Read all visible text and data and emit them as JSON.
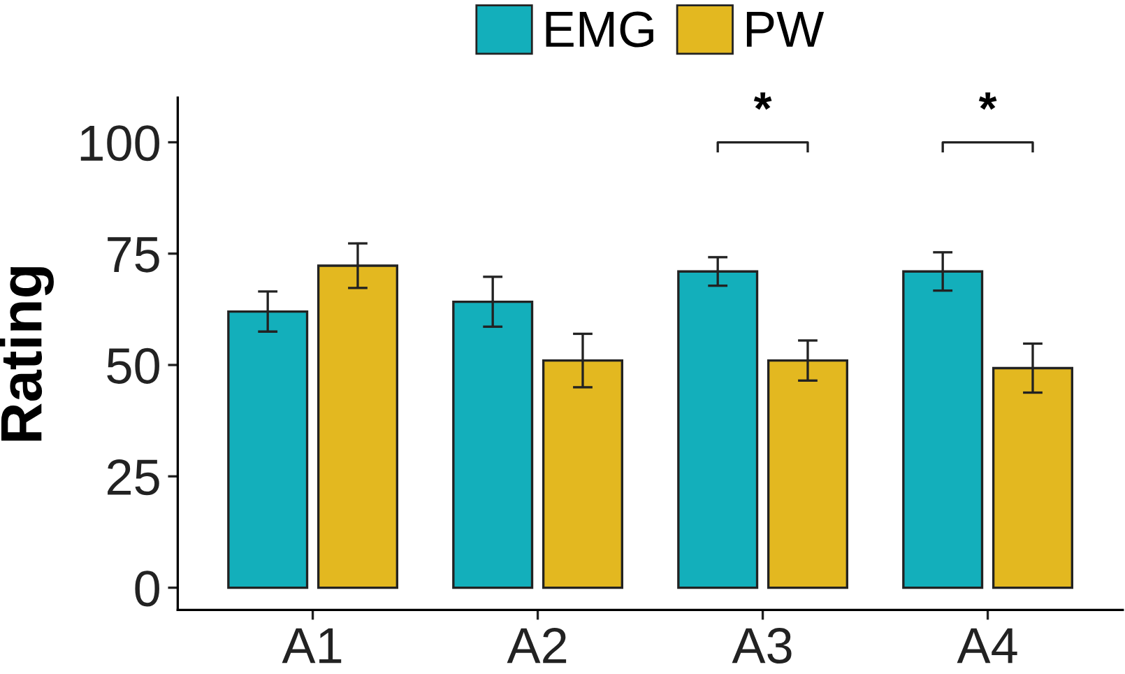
{
  "chart_data": {
    "type": "bar",
    "ylabel": "Rating",
    "categories": [
      "A1",
      "A2",
      "A3",
      "A4"
    ],
    "series": [
      {
        "name": "EMG",
        "color": "#13afbb",
        "values": [
          62,
          64.2,
          71,
          71
        ],
        "errors": [
          4.5,
          5.6,
          3.2,
          4.3
        ]
      },
      {
        "name": "PW",
        "color": "#e3b820",
        "values": [
          72.3,
          51,
          51,
          49.3
        ],
        "errors": [
          5,
          6,
          4.5,
          5.5
        ]
      }
    ],
    "ylim": [
      -5,
      110
    ],
    "yticks": [
      0,
      25,
      50,
      75,
      100
    ],
    "grid": false,
    "legend": "top",
    "annotations": [
      "*",
      "*"
    ]
  }
}
